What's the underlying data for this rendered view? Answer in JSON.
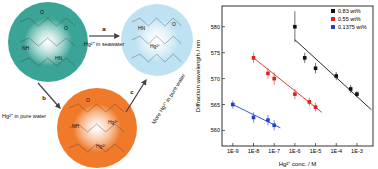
{
  "chart_data": {
    "type": "scatter",
    "x_label": "Hg²⁺ conc. / M",
    "y_label": "Diffraction wavelength / nm",
    "log": "x",
    "legend": "top-right",
    "marker": "square",
    "xlim": [
      3e-10,
      0.006
    ],
    "xticks": [
      {
        "value": 1e-09,
        "label": "1E-9"
      },
      {
        "value": 1e-08,
        "label": "1E-8"
      },
      {
        "value": 1e-07,
        "label": "1E-7"
      },
      {
        "value": 1e-06,
        "label": "1E-6"
      },
      {
        "value": 1e-05,
        "label": "1E-5"
      },
      {
        "value": 0.0001,
        "label": "1E-4"
      },
      {
        "value": 0.001,
        "label": "1E-3"
      }
    ],
    "ylim": [
      557,
      584
    ],
    "yticks": [
      560,
      565,
      570,
      575,
      580
    ],
    "series": [
      {
        "name": "0.83 wt%",
        "color": "#111111",
        "x": [
          1e-06,
          3e-06,
          1e-05,
          0.0001,
          0.0005,
          0.001
        ],
        "values": [
          580,
          574,
          572,
          570.5,
          568,
          567
        ],
        "errors": [
          3,
          1,
          1,
          0.8,
          0.8,
          0.6
        ],
        "fit": {
          "x": [
            1e-06,
            0.005
          ],
          "values": [
            577.5,
            564
          ]
        }
      },
      {
        "name": "0.55 wt%",
        "color": "#e02020",
        "x": [
          1e-08,
          5e-08,
          1e-07,
          1e-06,
          5e-06,
          1e-05
        ],
        "values": [
          574,
          571,
          570,
          567,
          565.5,
          564.5
        ],
        "errors": [
          1,
          1,
          1.2,
          1,
          0.8,
          0.8
        ],
        "fit": {
          "x": [
            1e-08,
            2e-05
          ],
          "values": [
            574,
            563.5
          ]
        }
      },
      {
        "name": "0.1375 wt%",
        "color": "#2040d0",
        "x": [
          1e-09,
          1e-08,
          5e-08,
          1e-07
        ],
        "values": [
          565,
          562.5,
          562,
          561
        ],
        "errors": [
          0.8,
          1,
          1,
          1
        ],
        "fit": {
          "x": [
            1e-09,
            2e-07
          ],
          "values": [
            565,
            560.5
          ]
        }
      }
    ]
  },
  "diagram": {
    "panels": [
      {
        "color": "#3aa596",
        "labels": [
          "O",
          "NH",
          "HN",
          "O"
        ]
      },
      {
        "color": "#bfe2f2",
        "labels": [
          "Hg²⁺",
          "HN",
          "O"
        ]
      },
      {
        "color": "#f07a2a",
        "labels": [
          "O",
          "NH",
          "Hg²⁺",
          "Hg²⁺"
        ]
      }
    ],
    "arrows": [
      {
        "label": "a",
        "text": "Hg²⁺ in seawater"
      },
      {
        "label": "b",
        "text": "Hg²⁺ in pure water"
      },
      {
        "label": "c",
        "text": "More Hg²⁺ in pure water"
      }
    ]
  }
}
